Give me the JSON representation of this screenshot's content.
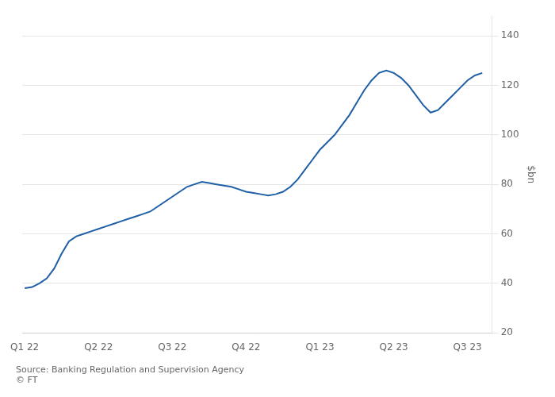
{
  "chart_data": {
    "type": "line",
    "ylabel": "$bn",
    "annotations": [
      "Source: Banking Regulation and Supervision Agency",
      "© FT"
    ],
    "x": [
      0,
      0.3,
      0.6,
      0.9,
      1.2,
      1.5,
      1.8,
      2.1,
      2.4,
      2.7,
      3.0,
      3.3,
      3.6,
      3.9,
      4.2,
      4.5,
      4.8,
      5.1,
      5.4,
      5.7,
      6.0,
      6.3,
      6.6,
      6.9,
      7.2,
      7.5,
      7.8,
      8.1,
      8.4,
      8.7,
      9.0,
      9.3,
      9.6,
      9.9,
      10.2,
      10.5,
      10.8,
      11.1,
      11.4,
      11.7,
      12.0,
      12.3,
      12.6,
      12.9,
      13.2,
      13.5,
      13.8,
      14.1,
      14.4,
      14.7,
      15.0,
      15.3,
      15.6,
      15.9,
      16.2,
      16.5,
      16.8,
      17.1,
      17.4,
      17.7,
      18.0,
      18.3,
      18.6
    ],
    "values": [
      38,
      38.5,
      40,
      42,
      46,
      52,
      57,
      59,
      60,
      61,
      62,
      63,
      64,
      65,
      66,
      67,
      68,
      69,
      71,
      73,
      75,
      77,
      79,
      80,
      81,
      80.5,
      80,
      79.5,
      79,
      78,
      77,
      76.5,
      76,
      75.5,
      76,
      77,
      79,
      82,
      86,
      90,
      94,
      97,
      100,
      104,
      108,
      113,
      118,
      122,
      125,
      126,
      125,
      123,
      120,
      116,
      112,
      109,
      110,
      113,
      116,
      119,
      122,
      124,
      125
    ],
    "color": "#1f5fa6",
    "xlim": [
      -0.1,
      19
    ],
    "xticks": [
      {
        "value": 0,
        "label": "Q1 22"
      },
      {
        "value": 3,
        "label": "Q2 22"
      },
      {
        "value": 6,
        "label": "Q3 22"
      },
      {
        "value": 9,
        "label": "Q4 22"
      },
      {
        "value": 12,
        "label": "Q1 23"
      },
      {
        "value": 15,
        "label": "Q2 23"
      },
      {
        "value": 18,
        "label": "Q3 23"
      }
    ],
    "ylim": [
      20,
      148
    ],
    "yticks": [
      20,
      40,
      60,
      80,
      100,
      120,
      140
    ],
    "grid": "y"
  }
}
